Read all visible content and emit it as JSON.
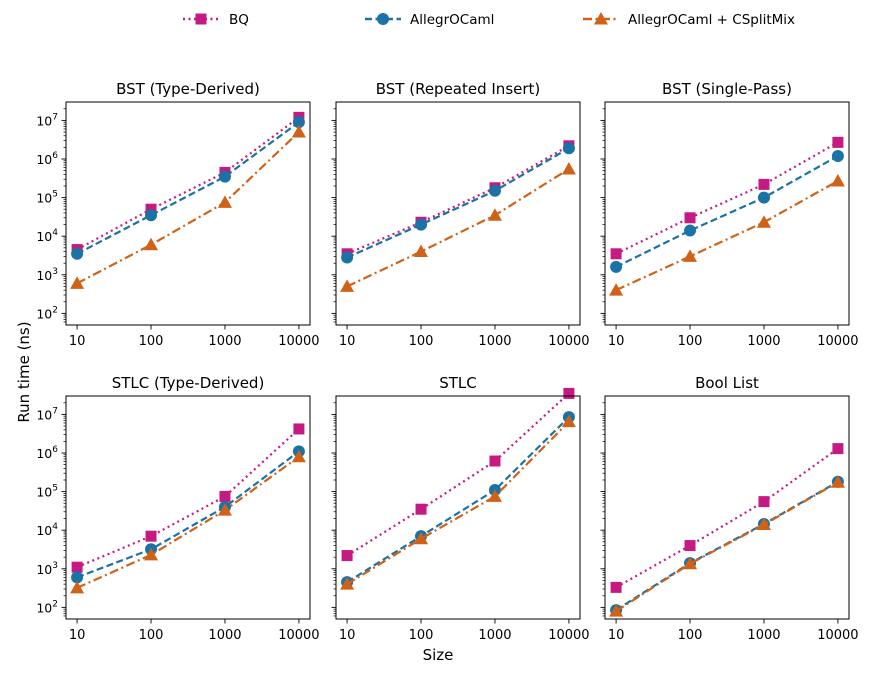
{
  "legend": {
    "entries": [
      {
        "series": "bq",
        "label": "BQ"
      },
      {
        "series": "allegro",
        "label": "AllegrOCaml"
      },
      {
        "series": "split",
        "label": "AllegrOCaml + CSplitMix"
      }
    ]
  },
  "figure": {
    "ylabel": "Run time (ns)",
    "xlabel": "Size"
  },
  "styles": {
    "bq": {
      "color": "#c51a82",
      "marker": "square",
      "dash": "dotted"
    },
    "allegro": {
      "color": "#1a72a6",
      "marker": "circle",
      "dash": "dashed"
    },
    "split": {
      "color": "#d06218",
      "marker": "triangle",
      "dash": "dashdot"
    }
  },
  "chart_data": [
    {
      "type": "line",
      "title": "BST (Type-Derived)",
      "xscale": "log",
      "yscale": "log",
      "x": [
        10,
        100,
        1000,
        10000
      ],
      "xticklabels": [
        "10",
        "100",
        "1000",
        "10000"
      ],
      "ylim": [
        50,
        30000000
      ],
      "yticks": [
        2,
        3,
        4,
        5,
        6,
        7
      ],
      "series": [
        {
          "key": "bq",
          "name": "BQ",
          "values": [
            4500,
            50000,
            450000,
            12000000
          ]
        },
        {
          "key": "allegro",
          "name": "AllegrOCaml",
          "values": [
            3500,
            35000,
            350000,
            9000000
          ]
        },
        {
          "key": "split",
          "name": "AllegrOCaml + CSplitMix",
          "values": [
            600,
            6000,
            75000,
            5000000
          ]
        }
      ]
    },
    {
      "type": "line",
      "title": "BST (Repeated Insert)",
      "xscale": "log",
      "yscale": "log",
      "x": [
        10,
        100,
        1000,
        10000
      ],
      "xticklabels": [
        "10",
        "100",
        "1000",
        "10000"
      ],
      "ylim": [
        50,
        30000000
      ],
      "yticks": [
        2,
        3,
        4,
        5,
        6,
        7
      ],
      "series": [
        {
          "key": "bq",
          "name": "BQ",
          "values": [
            3500,
            23000,
            180000,
            2200000
          ]
        },
        {
          "key": "allegro",
          "name": "AllegrOCaml",
          "values": [
            2800,
            20000,
            150000,
            1900000
          ]
        },
        {
          "key": "split",
          "name": "AllegrOCaml + CSplitMix",
          "values": [
            500,
            4000,
            35000,
            550000
          ]
        }
      ]
    },
    {
      "type": "line",
      "title": "BST (Single-Pass)",
      "xscale": "log",
      "yscale": "log",
      "x": [
        10,
        100,
        1000,
        10000
      ],
      "xticklabels": [
        "10",
        "100",
        "1000",
        "10000"
      ],
      "ylim": [
        50,
        30000000
      ],
      "yticks": [
        2,
        3,
        4,
        5,
        6,
        7
      ],
      "series": [
        {
          "key": "bq",
          "name": "BQ",
          "values": [
            3500,
            30000,
            220000,
            2700000
          ]
        },
        {
          "key": "allegro",
          "name": "AllegrOCaml",
          "values": [
            1600,
            14000,
            100000,
            1200000
          ]
        },
        {
          "key": "split",
          "name": "AllegrOCaml + CSplitMix",
          "values": [
            400,
            3000,
            23000,
            270000
          ]
        }
      ]
    },
    {
      "type": "line",
      "title": "STLC (Type-Derived)",
      "xscale": "log",
      "yscale": "log",
      "x": [
        10,
        100,
        1000,
        10000
      ],
      "xticklabels": [
        "10",
        "100",
        "1000",
        "10000"
      ],
      "ylim": [
        50,
        30000000
      ],
      "yticks": [
        2,
        3,
        4,
        5,
        6,
        7
      ],
      "series": [
        {
          "key": "bq",
          "name": "BQ",
          "values": [
            1100,
            7000,
            75000,
            4200000
          ]
        },
        {
          "key": "allegro",
          "name": "AllegrOCaml",
          "values": [
            600,
            3200,
            40000,
            1100000
          ]
        },
        {
          "key": "split",
          "name": "AllegrOCaml + CSplitMix",
          "values": [
            320,
            2300,
            33000,
            800000
          ]
        }
      ]
    },
    {
      "type": "line",
      "title": "STLC",
      "xscale": "log",
      "yscale": "log",
      "x": [
        10,
        100,
        1000,
        10000
      ],
      "xticklabels": [
        "10",
        "100",
        "1000",
        "10000"
      ],
      "ylim": [
        50,
        30000000
      ],
      "yticks": [
        2,
        3,
        4,
        5,
        6,
        7
      ],
      "series": [
        {
          "key": "bq",
          "name": "BQ",
          "values": [
            2200,
            35000,
            620000,
            35000000
          ]
        },
        {
          "key": "allegro",
          "name": "AllegrOCaml",
          "values": [
            450,
            7000,
            110000,
            8500000
          ]
        },
        {
          "key": "split",
          "name": "AllegrOCaml + CSplitMix",
          "values": [
            400,
            6000,
            75000,
            6500000
          ]
        }
      ]
    },
    {
      "type": "line",
      "title": "Bool List",
      "xscale": "log",
      "yscale": "log",
      "x": [
        10,
        100,
        1000,
        10000
      ],
      "xticklabels": [
        "10",
        "100",
        "1000",
        "10000"
      ],
      "ylim": [
        50,
        30000000
      ],
      "yticks": [
        2,
        3,
        4,
        5,
        6,
        7
      ],
      "series": [
        {
          "key": "bq",
          "name": "BQ",
          "values": [
            330,
            4000,
            55000,
            1300000
          ]
        },
        {
          "key": "allegro",
          "name": "AllegrOCaml",
          "values": [
            85,
            1400,
            14500,
            180000
          ]
        },
        {
          "key": "split",
          "name": "AllegrOCaml + CSplitMix",
          "values": [
            80,
            1350,
            14000,
            175000
          ]
        }
      ]
    }
  ]
}
